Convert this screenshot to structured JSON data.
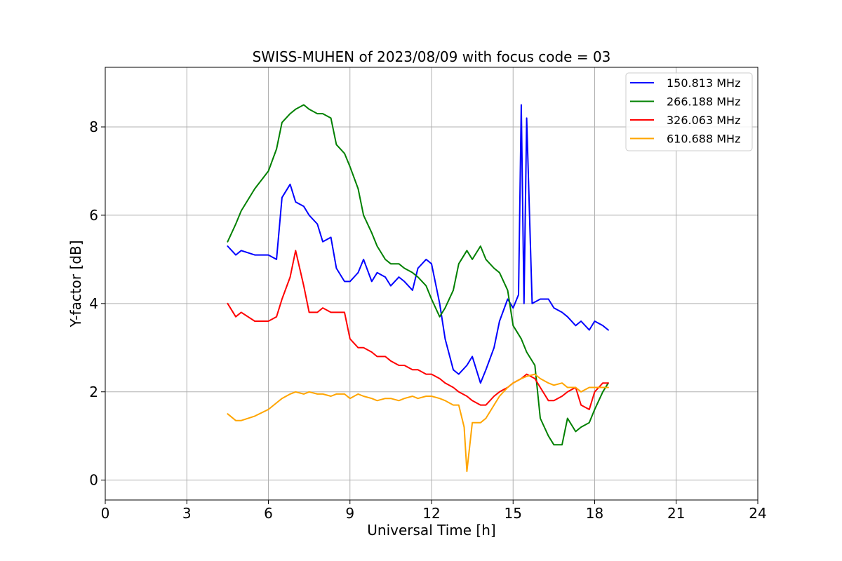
{
  "chart_data": {
    "type": "line",
    "title": "SWISS-MUHEN of 2023/08/09 with focus code = 03",
    "xlabel": "Universal Time [h]",
    "ylabel": "Y-factor [dB]",
    "xlim": [
      0,
      24
    ],
    "ylim": [
      -0.45,
      9.35
    ],
    "xticks": [
      0,
      3,
      6,
      9,
      12,
      15,
      18,
      21,
      24
    ],
    "xtick_labels": [
      "0",
      "3",
      "6",
      "9",
      "12",
      "15",
      "18",
      "21",
      "24"
    ],
    "yticks": [
      0,
      2,
      4,
      6,
      8
    ],
    "ytick_labels": [
      "0",
      "2",
      "4",
      "6",
      "8"
    ],
    "grid": true,
    "legend_position": "top-right",
    "series": [
      {
        "name": "150.813 MHz",
        "color": "#0000ff",
        "x": [
          4.5,
          4.8,
          5.0,
          5.5,
          6.0,
          6.3,
          6.5,
          6.8,
          7.0,
          7.3,
          7.5,
          7.8,
          8.0,
          8.3,
          8.5,
          8.8,
          9.0,
          9.3,
          9.5,
          9.8,
          10.0,
          10.3,
          10.5,
          10.8,
          11.0,
          11.3,
          11.5,
          11.8,
          12.0,
          12.3,
          12.5,
          12.8,
          13.0,
          13.3,
          13.5,
          13.8,
          14.0,
          14.3,
          14.5,
          14.8,
          15.0,
          15.2,
          15.3,
          15.4,
          15.5,
          15.7,
          16.0,
          16.3,
          16.5,
          16.8,
          17.0,
          17.3,
          17.5,
          17.8,
          18.0,
          18.3,
          18.5
        ],
        "y": [
          5.3,
          5.1,
          5.2,
          5.1,
          5.1,
          5.0,
          6.4,
          6.7,
          6.3,
          6.2,
          6.0,
          5.8,
          5.4,
          5.5,
          4.8,
          4.5,
          4.5,
          4.7,
          5.0,
          4.5,
          4.7,
          4.6,
          4.4,
          4.6,
          4.5,
          4.3,
          4.8,
          5.0,
          4.9,
          4.0,
          3.2,
          2.5,
          2.4,
          2.6,
          2.8,
          2.2,
          2.5,
          3.0,
          3.6,
          4.1,
          3.9,
          4.2,
          8.5,
          4.0,
          8.2,
          4.0,
          4.1,
          4.1,
          3.9,
          3.8,
          3.7,
          3.5,
          3.6,
          3.4,
          3.6,
          3.5,
          3.4
        ]
      },
      {
        "name": "266.188 MHz",
        "color": "#008000",
        "x": [
          4.5,
          4.8,
          5.0,
          5.5,
          6.0,
          6.3,
          6.5,
          6.8,
          7.0,
          7.3,
          7.5,
          7.8,
          8.0,
          8.3,
          8.5,
          8.8,
          9.0,
          9.3,
          9.5,
          9.8,
          10.0,
          10.3,
          10.5,
          10.8,
          11.0,
          11.3,
          11.5,
          11.8,
          12.0,
          12.3,
          12.5,
          12.8,
          13.0,
          13.3,
          13.5,
          13.8,
          14.0,
          14.3,
          14.5,
          14.8,
          15.0,
          15.3,
          15.5,
          15.8,
          16.0,
          16.3,
          16.5,
          16.8,
          17.0,
          17.3,
          17.5,
          17.8,
          18.0,
          18.3,
          18.5
        ],
        "y": [
          5.4,
          5.8,
          6.1,
          6.6,
          7.0,
          7.5,
          8.1,
          8.3,
          8.4,
          8.5,
          8.4,
          8.3,
          8.3,
          8.2,
          7.6,
          7.4,
          7.1,
          6.6,
          6.0,
          5.6,
          5.3,
          5.0,
          4.9,
          4.9,
          4.8,
          4.7,
          4.6,
          4.4,
          4.1,
          3.7,
          3.9,
          4.3,
          4.9,
          5.2,
          5.0,
          5.3,
          5.0,
          4.8,
          4.7,
          4.3,
          3.5,
          3.2,
          2.9,
          2.6,
          1.4,
          1.0,
          0.8,
          0.8,
          1.4,
          1.1,
          1.2,
          1.3,
          1.6,
          2.0,
          2.2
        ]
      },
      {
        "name": "326.063 MHz",
        "color": "#ff0000",
        "x": [
          4.5,
          4.8,
          5.0,
          5.5,
          6.0,
          6.3,
          6.5,
          6.8,
          7.0,
          7.3,
          7.5,
          7.8,
          8.0,
          8.3,
          8.5,
          8.8,
          9.0,
          9.3,
          9.5,
          9.8,
          10.0,
          10.3,
          10.5,
          10.8,
          11.0,
          11.3,
          11.5,
          11.8,
          12.0,
          12.3,
          12.5,
          12.8,
          13.0,
          13.3,
          13.5,
          13.8,
          14.0,
          14.3,
          14.5,
          14.8,
          15.0,
          15.3,
          15.5,
          15.8,
          16.0,
          16.3,
          16.5,
          16.8,
          17.0,
          17.3,
          17.5,
          17.8,
          18.0,
          18.3,
          18.5
        ],
        "y": [
          4.0,
          3.7,
          3.8,
          3.6,
          3.6,
          3.7,
          4.1,
          4.6,
          5.2,
          4.4,
          3.8,
          3.8,
          3.9,
          3.8,
          3.8,
          3.8,
          3.2,
          3.0,
          3.0,
          2.9,
          2.8,
          2.8,
          2.7,
          2.6,
          2.6,
          2.5,
          2.5,
          2.4,
          2.4,
          2.3,
          2.2,
          2.1,
          2.0,
          1.9,
          1.8,
          1.7,
          1.7,
          1.9,
          2.0,
          2.1,
          2.2,
          2.3,
          2.4,
          2.3,
          2.1,
          1.8,
          1.8,
          1.9,
          2.0,
          2.1,
          1.7,
          1.6,
          2.0,
          2.2,
          2.2
        ]
      },
      {
        "name": "610.688 MHz",
        "color": "#ffa500",
        "x": [
          4.5,
          4.8,
          5.0,
          5.5,
          6.0,
          6.3,
          6.5,
          6.8,
          7.0,
          7.3,
          7.5,
          7.8,
          8.0,
          8.3,
          8.5,
          8.8,
          9.0,
          9.3,
          9.5,
          9.8,
          10.0,
          10.3,
          10.5,
          10.8,
          11.0,
          11.3,
          11.5,
          11.8,
          12.0,
          12.3,
          12.5,
          12.8,
          13.0,
          13.2,
          13.3,
          13.5,
          13.8,
          14.0,
          14.3,
          14.5,
          14.8,
          15.0,
          15.3,
          15.5,
          15.8,
          16.0,
          16.3,
          16.5,
          16.8,
          17.0,
          17.3,
          17.5,
          17.8,
          18.0,
          18.3,
          18.5
        ],
        "y": [
          1.5,
          1.35,
          1.35,
          1.45,
          1.6,
          1.75,
          1.85,
          1.95,
          2.0,
          1.95,
          2.0,
          1.95,
          1.95,
          1.9,
          1.95,
          1.95,
          1.85,
          1.95,
          1.9,
          1.85,
          1.8,
          1.85,
          1.85,
          1.8,
          1.85,
          1.9,
          1.85,
          1.9,
          1.9,
          1.85,
          1.8,
          1.7,
          1.7,
          1.2,
          0.2,
          1.3,
          1.3,
          1.4,
          1.7,
          1.9,
          2.1,
          2.2,
          2.3,
          2.35,
          2.4,
          2.3,
          2.2,
          2.15,
          2.2,
          2.1,
          2.1,
          2.0,
          2.1,
          2.1,
          2.1,
          2.1
        ]
      }
    ]
  }
}
